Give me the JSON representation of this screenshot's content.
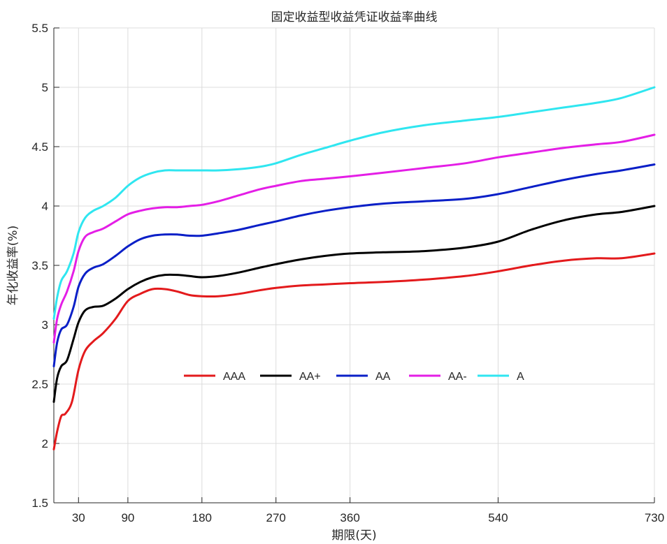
{
  "chart_data": {
    "type": "line",
    "title": "固定收益型收益凭证收益率曲线",
    "xlabel": "期限(天)",
    "ylabel": "年化收益率(%)",
    "xlim": [
      0,
      730
    ],
    "ylim": [
      1.5,
      5.5
    ],
    "xticks": [
      30,
      90,
      180,
      270,
      360,
      540,
      730
    ],
    "yticks": [
      1.5,
      2,
      2.5,
      3,
      3.5,
      4,
      4.5,
      5,
      5.5
    ],
    "grid": true,
    "legend": {
      "position": "center",
      "orientation": "horizontal"
    },
    "series": [
      {
        "name": "AAA",
        "color": "#e31a1c",
        "points": [
          [
            0,
            1.95
          ],
          [
            4,
            2.1
          ],
          [
            9,
            2.23
          ],
          [
            14,
            2.25
          ],
          [
            22,
            2.35
          ],
          [
            30,
            2.62
          ],
          [
            38,
            2.78
          ],
          [
            48,
            2.86
          ],
          [
            60,
            2.93
          ],
          [
            75,
            3.05
          ],
          [
            90,
            3.2
          ],
          [
            105,
            3.26
          ],
          [
            120,
            3.3
          ],
          [
            135,
            3.3
          ],
          [
            150,
            3.28
          ],
          [
            165,
            3.25
          ],
          [
            180,
            3.24
          ],
          [
            200,
            3.24
          ],
          [
            225,
            3.26
          ],
          [
            250,
            3.29
          ],
          [
            270,
            3.31
          ],
          [
            300,
            3.33
          ],
          [
            330,
            3.34
          ],
          [
            360,
            3.35
          ],
          [
            400,
            3.36
          ],
          [
            450,
            3.38
          ],
          [
            500,
            3.41
          ],
          [
            540,
            3.45
          ],
          [
            580,
            3.5
          ],
          [
            620,
            3.54
          ],
          [
            660,
            3.56
          ],
          [
            690,
            3.56
          ],
          [
            730,
            3.6
          ]
        ]
      },
      {
        "name": "AA+",
        "color": "#000000",
        "points": [
          [
            0,
            2.35
          ],
          [
            4,
            2.55
          ],
          [
            9,
            2.65
          ],
          [
            16,
            2.7
          ],
          [
            24,
            2.88
          ],
          [
            30,
            3.02
          ],
          [
            38,
            3.12
          ],
          [
            48,
            3.15
          ],
          [
            60,
            3.16
          ],
          [
            75,
            3.22
          ],
          [
            90,
            3.3
          ],
          [
            105,
            3.36
          ],
          [
            120,
            3.4
          ],
          [
            135,
            3.42
          ],
          [
            150,
            3.42
          ],
          [
            165,
            3.41
          ],
          [
            180,
            3.4
          ],
          [
            200,
            3.41
          ],
          [
            225,
            3.44
          ],
          [
            250,
            3.48
          ],
          [
            270,
            3.51
          ],
          [
            300,
            3.55
          ],
          [
            330,
            3.58
          ],
          [
            360,
            3.6
          ],
          [
            400,
            3.61
          ],
          [
            450,
            3.62
          ],
          [
            500,
            3.65
          ],
          [
            540,
            3.7
          ],
          [
            580,
            3.8
          ],
          [
            620,
            3.88
          ],
          [
            660,
            3.93
          ],
          [
            690,
            3.95
          ],
          [
            730,
            4.0
          ]
        ]
      },
      {
        "name": "AA",
        "color": "#0a1fc7",
        "points": [
          [
            0,
            2.65
          ],
          [
            4,
            2.85
          ],
          [
            9,
            2.96
          ],
          [
            16,
            3.0
          ],
          [
            24,
            3.15
          ],
          [
            30,
            3.32
          ],
          [
            38,
            3.43
          ],
          [
            48,
            3.48
          ],
          [
            60,
            3.51
          ],
          [
            75,
            3.58
          ],
          [
            90,
            3.66
          ],
          [
            105,
            3.72
          ],
          [
            120,
            3.75
          ],
          [
            135,
            3.76
          ],
          [
            150,
            3.76
          ],
          [
            165,
            3.75
          ],
          [
            180,
            3.75
          ],
          [
            200,
            3.77
          ],
          [
            225,
            3.8
          ],
          [
            250,
            3.84
          ],
          [
            270,
            3.87
          ],
          [
            300,
            3.92
          ],
          [
            330,
            3.96
          ],
          [
            360,
            3.99
          ],
          [
            400,
            4.02
          ],
          [
            450,
            4.04
          ],
          [
            500,
            4.06
          ],
          [
            540,
            4.1
          ],
          [
            580,
            4.16
          ],
          [
            620,
            4.22
          ],
          [
            660,
            4.27
          ],
          [
            690,
            4.3
          ],
          [
            730,
            4.35
          ]
        ]
      },
      {
        "name": "AA-",
        "color": "#e41ee6",
        "points": [
          [
            0,
            2.85
          ],
          [
            4,
            3.05
          ],
          [
            9,
            3.17
          ],
          [
            16,
            3.28
          ],
          [
            24,
            3.45
          ],
          [
            30,
            3.62
          ],
          [
            38,
            3.74
          ],
          [
            48,
            3.78
          ],
          [
            60,
            3.81
          ],
          [
            75,
            3.87
          ],
          [
            90,
            3.93
          ],
          [
            105,
            3.96
          ],
          [
            120,
            3.98
          ],
          [
            135,
            3.99
          ],
          [
            150,
            3.99
          ],
          [
            165,
            4.0
          ],
          [
            180,
            4.01
          ],
          [
            200,
            4.04
          ],
          [
            225,
            4.09
          ],
          [
            250,
            4.14
          ],
          [
            270,
            4.17
          ],
          [
            300,
            4.21
          ],
          [
            330,
            4.23
          ],
          [
            360,
            4.25
          ],
          [
            400,
            4.28
          ],
          [
            450,
            4.32
          ],
          [
            500,
            4.36
          ],
          [
            540,
            4.41
          ],
          [
            580,
            4.45
          ],
          [
            620,
            4.49
          ],
          [
            660,
            4.52
          ],
          [
            690,
            4.54
          ],
          [
            730,
            4.6
          ]
        ]
      },
      {
        "name": "A",
        "color": "#2fe6f0",
        "points": [
          [
            0,
            3.05
          ],
          [
            4,
            3.23
          ],
          [
            9,
            3.37
          ],
          [
            16,
            3.45
          ],
          [
            24,
            3.6
          ],
          [
            30,
            3.78
          ],
          [
            38,
            3.9
          ],
          [
            48,
            3.96
          ],
          [
            60,
            4.0
          ],
          [
            75,
            4.07
          ],
          [
            90,
            4.17
          ],
          [
            105,
            4.24
          ],
          [
            120,
            4.28
          ],
          [
            135,
            4.3
          ],
          [
            150,
            4.3
          ],
          [
            165,
            4.3
          ],
          [
            180,
            4.3
          ],
          [
            200,
            4.3
          ],
          [
            225,
            4.31
          ],
          [
            250,
            4.33
          ],
          [
            270,
            4.36
          ],
          [
            300,
            4.43
          ],
          [
            330,
            4.49
          ],
          [
            360,
            4.55
          ],
          [
            400,
            4.62
          ],
          [
            450,
            4.68
          ],
          [
            500,
            4.72
          ],
          [
            540,
            4.75
          ],
          [
            580,
            4.79
          ],
          [
            620,
            4.83
          ],
          [
            660,
            4.87
          ],
          [
            690,
            4.91
          ],
          [
            730,
            5.0
          ]
        ]
      }
    ]
  }
}
